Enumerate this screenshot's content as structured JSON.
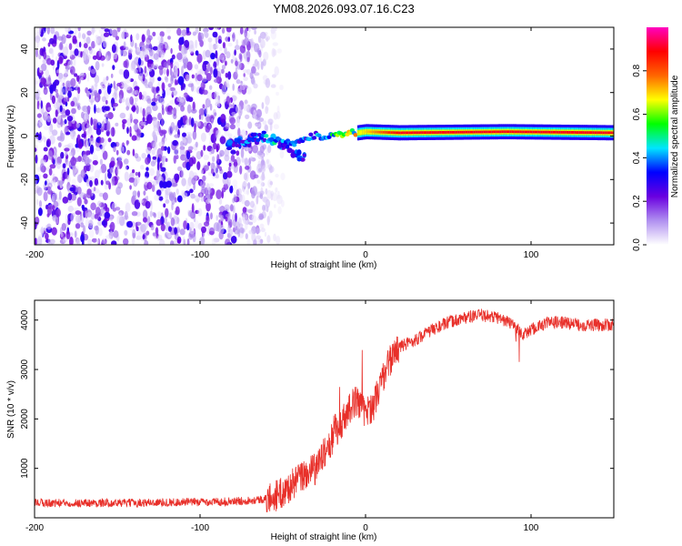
{
  "title": "YM08.2026.093.07.16.C23",
  "chart_data": [
    {
      "type": "heatmap",
      "name": "spectrogram",
      "xlabel": "Height of straight line (km)",
      "ylabel": "Frequency (Hz)",
      "xlim": [
        -200,
        150
      ],
      "ylim": [
        -50,
        50
      ],
      "xticks": [
        -200,
        -100,
        0,
        100
      ],
      "xtick_labels": [
        "-200",
        "-100",
        "0",
        "100"
      ],
      "yticks": [
        -40,
        -20,
        0,
        20,
        40
      ],
      "ytick_labels": [
        "-40",
        "-20",
        "0",
        "20",
        "40"
      ],
      "colorbar": {
        "label": "Normalized spectral amplitude",
        "range": [
          0,
          1
        ],
        "ticks": [
          0.0,
          0.2,
          0.4,
          0.6,
          0.8
        ],
        "tick_labels": [
          "0.0",
          "0.2",
          "0.4",
          "0.6",
          "0.8"
        ],
        "colors": [
          "#ffffff",
          "#b090f0",
          "#6a00e0",
          "#0000ff",
          "#00e5ff",
          "#00ff00",
          "#ffff00",
          "#ff6600",
          "#ff0000",
          "#ff00c0"
        ]
      },
      "features": {
        "noise_region_km": [
          -200,
          -58
        ],
        "scatter_streak_km": [
          -85,
          -35
        ],
        "strong_line_start_km": -5,
        "strong_line_frequency_hz": 1.5,
        "strong_line_values": [
          {
            "x": -70,
            "y": 0,
            "v": 0.3
          },
          {
            "x": -55,
            "y": -2,
            "v": 0.45
          },
          {
            "x": -45,
            "y": -4,
            "v": 0.35
          },
          {
            "x": -30,
            "y": 0,
            "v": 0.4
          },
          {
            "x": -10,
            "y": 1,
            "v": 0.6
          },
          {
            "x": 0,
            "y": 2,
            "v": 0.7
          },
          {
            "x": 20,
            "y": 1.5,
            "v": 0.9
          },
          {
            "x": 85,
            "y": 2,
            "v": 0.9
          },
          {
            "x": 150,
            "y": 1.5,
            "v": 0.9
          }
        ]
      }
    },
    {
      "type": "line",
      "name": "snr",
      "xlabel": "Height of straight line (km)",
      "ylabel": "SNR (10 * v/v)",
      "xlim": [
        -200,
        150
      ],
      "ylim": [
        0,
        4400
      ],
      "xticks": [
        -200,
        -100,
        0,
        100
      ],
      "xtick_labels": [
        "-200",
        "-100",
        "0",
        "100"
      ],
      "yticks": [
        1000,
        2000,
        3000,
        4000
      ],
      "ytick_labels": [
        "1000",
        "2000",
        "3000",
        "4000"
      ],
      "color": "#e8302a",
      "series": [
        {
          "name": "SNR",
          "x": [
            -200,
            -150,
            -100,
            -80,
            -60,
            -50,
            -40,
            -30,
            -25,
            -20,
            -15,
            -10,
            -5,
            0,
            5,
            10,
            15,
            20,
            30,
            40,
            50,
            60,
            70,
            80,
            90,
            95,
            100,
            110,
            120,
            130,
            140,
            150
          ],
          "y": [
            300,
            300,
            320,
            330,
            380,
            500,
            800,
            1000,
            1300,
            1600,
            1900,
            2200,
            2400,
            2100,
            2300,
            2800,
            3200,
            3450,
            3600,
            3800,
            3950,
            4050,
            4100,
            4050,
            3900,
            3700,
            3800,
            3950,
            3950,
            3900,
            3900,
            3900
          ]
        }
      ]
    }
  ]
}
